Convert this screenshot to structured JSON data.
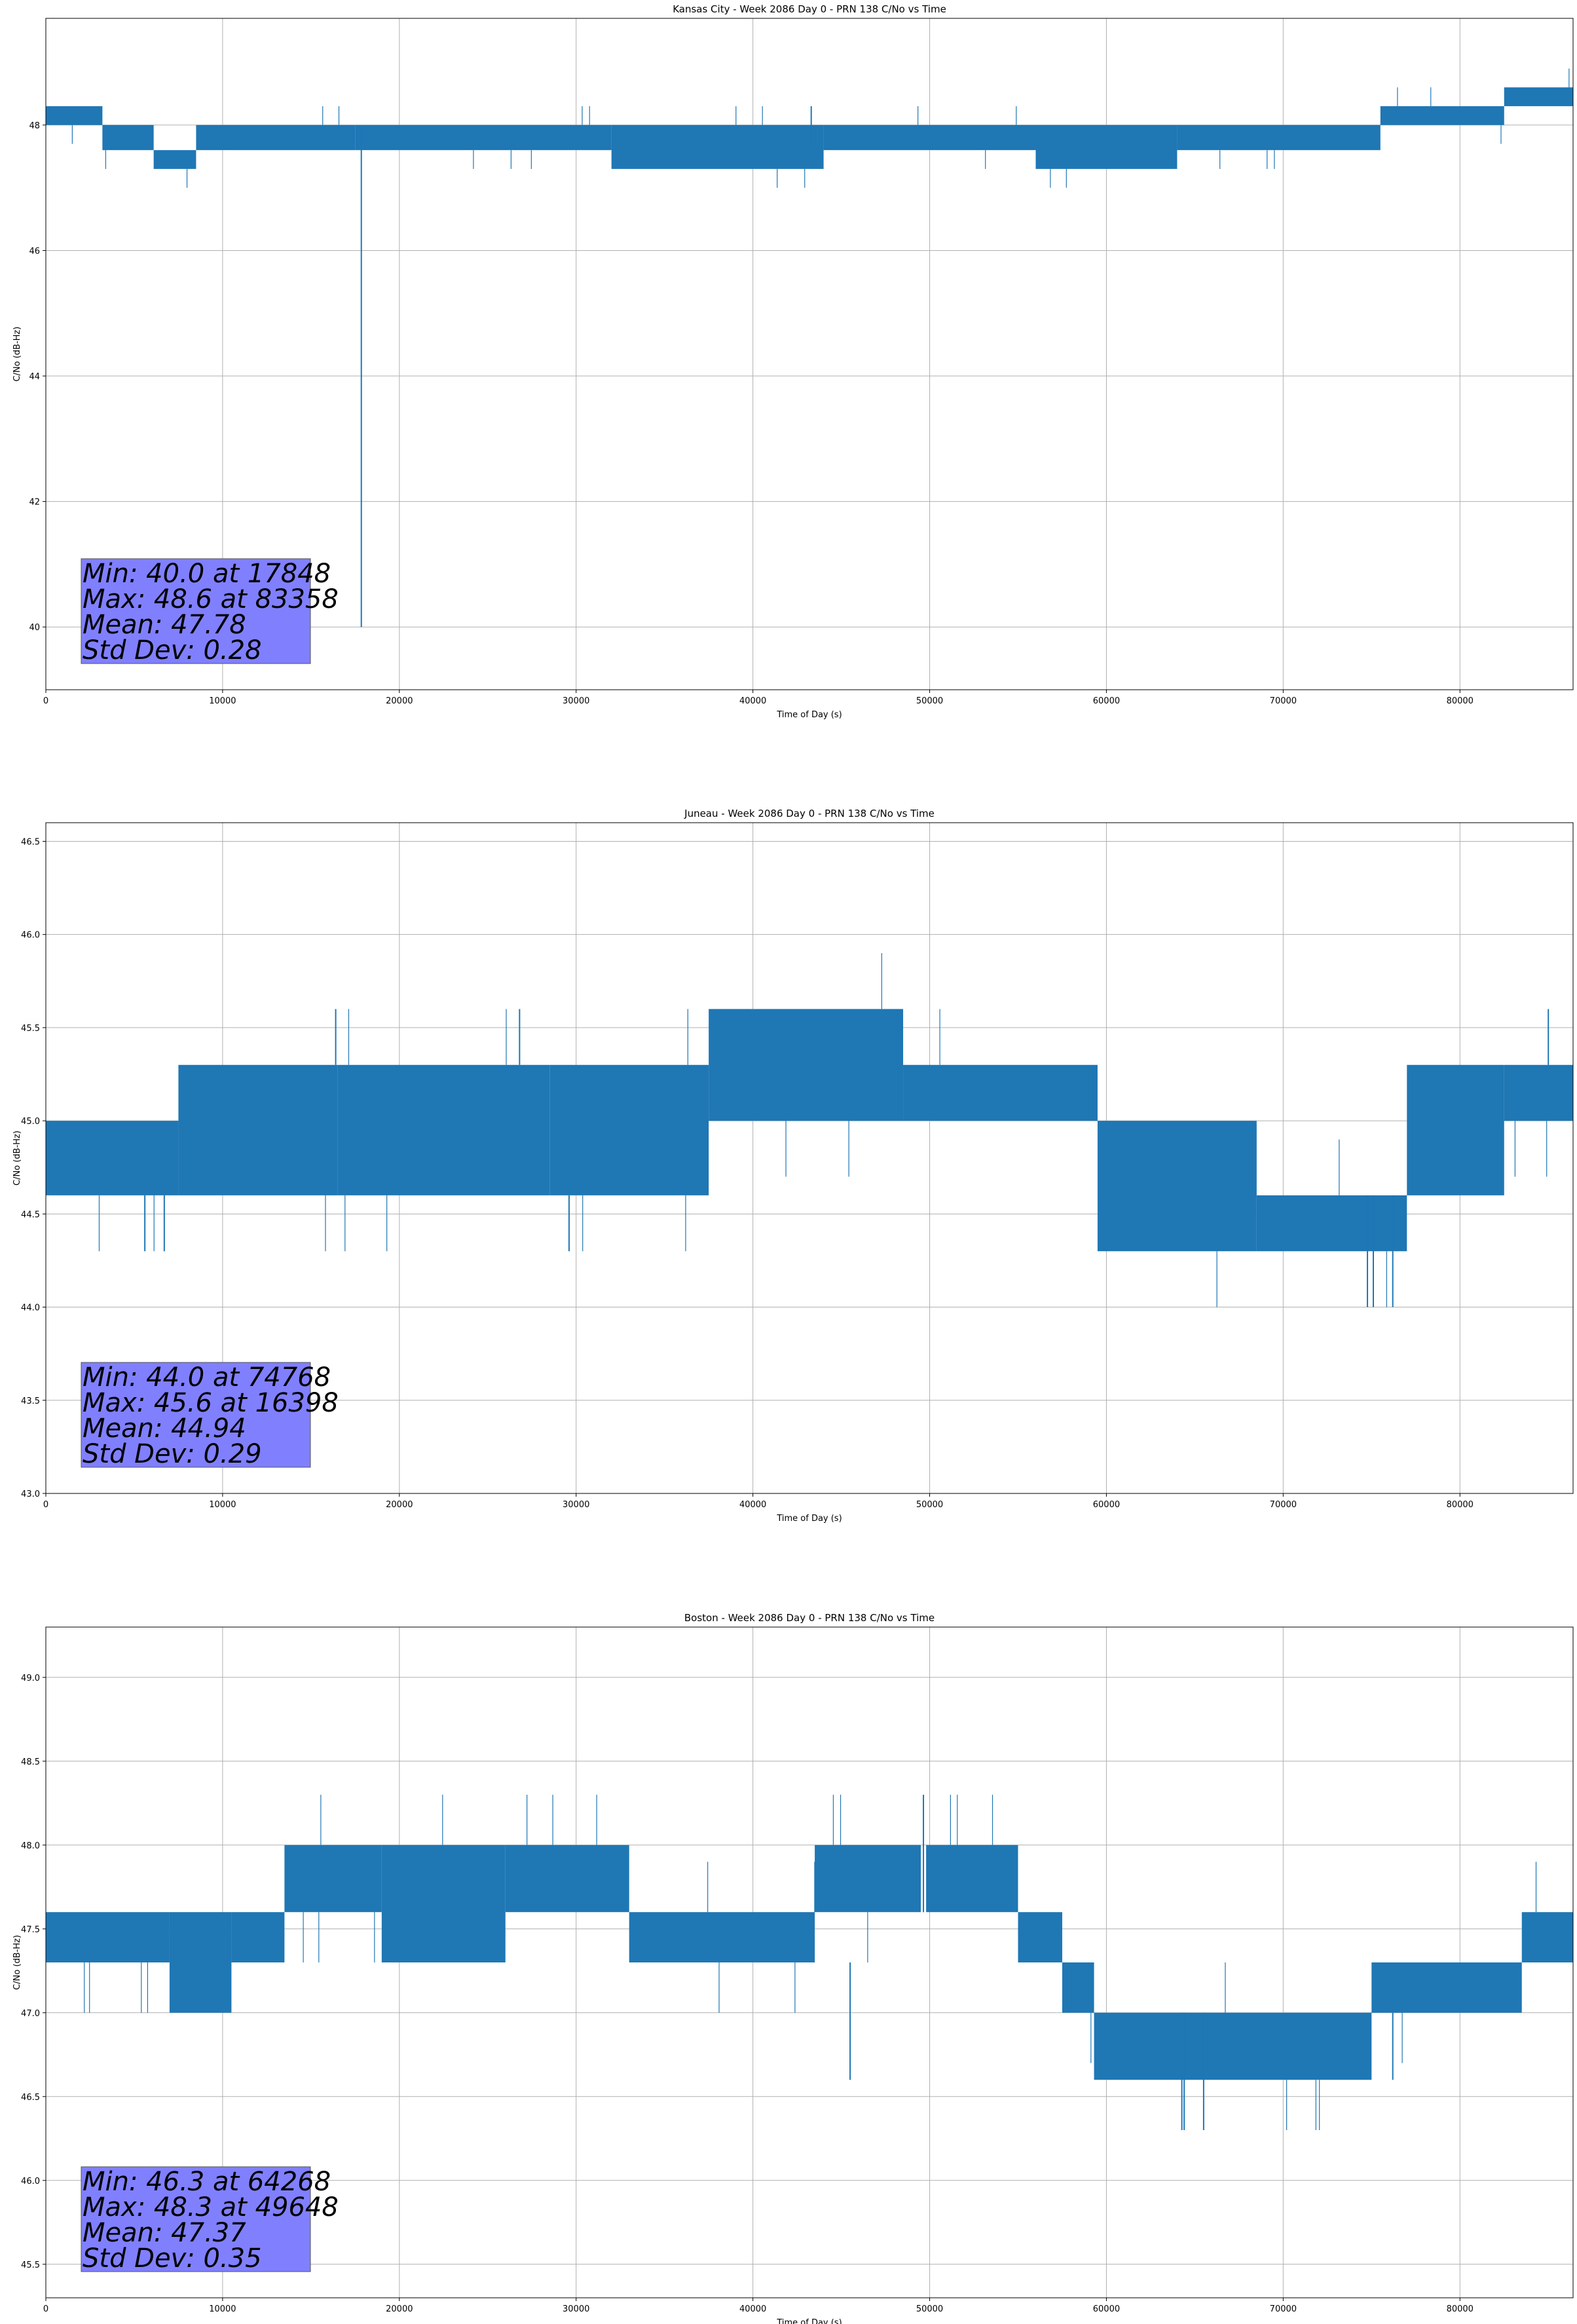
{
  "chart_data": [
    {
      "type": "line",
      "title": "Kansas City - Week 2086 Day 0 - PRN 138 C/No vs Time",
      "xlabel": "Time of Day (s)",
      "ylabel": "C/No (dB-Hz)",
      "xlim": [
        0,
        86400
      ],
      "ylim": [
        39.0,
        49.7
      ],
      "xticks": [
        0,
        10000,
        20000,
        30000,
        40000,
        50000,
        60000,
        70000,
        80000
      ],
      "yticks": [
        40,
        42,
        44,
        46,
        48
      ],
      "ytick_decimals": 0,
      "grid": true,
      "color": "#1f77b4",
      "series": [
        {
          "name": "C/No",
          "bands": [
            {
              "x": [
                0,
                3200
              ],
              "levels": [
                48.0,
                48.3
              ]
            },
            {
              "x": [
                3200,
                6100
              ],
              "levels": [
                47.6,
                48.0
              ]
            },
            {
              "x": [
                6100,
                8500
              ],
              "levels": [
                47.3,
                47.6
              ]
            },
            {
              "x": [
                8500,
                17500
              ],
              "levels": [
                47.6,
                48.0
              ]
            },
            {
              "x": [
                17500,
                32000
              ],
              "levels": [
                47.6,
                48.0
              ]
            },
            {
              "x": [
                32000,
                44000
              ],
              "levels": [
                47.3,
                48.0
              ]
            },
            {
              "x": [
                44000,
                56000
              ],
              "levels": [
                47.6,
                48.0
              ]
            },
            {
              "x": [
                56000,
                64000
              ],
              "levels": [
                47.3,
                48.0
              ]
            },
            {
              "x": [
                64000,
                75500
              ],
              "levels": [
                47.6,
                48.0
              ]
            },
            {
              "x": [
                75500,
                82500
              ],
              "levels": [
                48.0,
                48.3
              ]
            },
            {
              "x": [
                82500,
                86400
              ],
              "levels": [
                48.3,
                48.6
              ]
            }
          ],
          "spikes": [
            {
              "x": 17848,
              "low": 40.0,
              "high": 48.0
            },
            {
              "x": 3300,
              "low": 47.6,
              "high": 48.0
            },
            {
              "x": 43300,
              "low": 47.6,
              "high": 48.3
            }
          ]
        }
      ],
      "stats": {
        "min": "Min: 40.0 at 17848",
        "max": "Max: 48.6 at 83358",
        "mean": "Mean: 47.78",
        "std": "Std Dev: 0.28"
      }
    },
    {
      "type": "line",
      "title": "Juneau - Week 2086 Day 0 - PRN 138 C/No vs Time",
      "xlabel": "Time of Day (s)",
      "ylabel": "C/No (dB-Hz)",
      "xlim": [
        0,
        86400
      ],
      "ylim": [
        43.0,
        46.6
      ],
      "xticks": [
        0,
        10000,
        20000,
        30000,
        40000,
        50000,
        60000,
        70000,
        80000
      ],
      "yticks": [
        43.0,
        43.5,
        44.0,
        44.5,
        45.0,
        45.5,
        46.0,
        46.5
      ],
      "ytick_decimals": 1,
      "grid": true,
      "color": "#1f77b4",
      "series": [
        {
          "name": "C/No",
          "bands": [
            {
              "x": [
                0,
                7500
              ],
              "levels": [
                44.6,
                45.0
              ]
            },
            {
              "x": [
                7500,
                16500
              ],
              "levels": [
                44.6,
                45.3
              ]
            },
            {
              "x": [
                16500,
                28500
              ],
              "levels": [
                44.6,
                45.3
              ]
            },
            {
              "x": [
                28500,
                37500
              ],
              "levels": [
                44.6,
                45.3
              ]
            },
            {
              "x": [
                37500,
                48500
              ],
              "levels": [
                45.0,
                45.6
              ]
            },
            {
              "x": [
                48500,
                59500
              ],
              "levels": [
                45.0,
                45.3
              ]
            },
            {
              "x": [
                59500,
                68500
              ],
              "levels": [
                44.3,
                45.0
              ]
            },
            {
              "x": [
                68500,
                77000
              ],
              "levels": [
                44.3,
                44.6
              ]
            },
            {
              "x": [
                77000,
                82500
              ],
              "levels": [
                44.6,
                45.3
              ]
            },
            {
              "x": [
                82500,
                86400
              ],
              "levels": [
                45.0,
                45.3
              ]
            }
          ],
          "spikes": [
            {
              "x": 74768,
              "low": 44.0,
              "high": 44.6
            },
            {
              "x": 75100,
              "low": 44.0,
              "high": 44.6
            },
            {
              "x": 76200,
              "low": 44.0,
              "high": 44.6
            },
            {
              "x": 16398,
              "low": 45.3,
              "high": 45.6
            },
            {
              "x": 26800,
              "low": 45.3,
              "high": 45.6
            },
            {
              "x": 5600,
              "low": 44.3,
              "high": 44.6
            },
            {
              "x": 6700,
              "low": 44.3,
              "high": 44.6
            },
            {
              "x": 29600,
              "low": 44.3,
              "high": 44.6
            },
            {
              "x": 48200,
              "low": 45.3,
              "high": 45.6
            },
            {
              "x": 85000,
              "low": 45.3,
              "high": 45.6
            }
          ]
        }
      ],
      "stats": {
        "min": "Min: 44.0 at 74768",
        "max": "Max: 45.6 at 16398",
        "mean": "Mean: 44.94",
        "std": "Std Dev: 0.29"
      }
    },
    {
      "type": "line",
      "title": "Boston - Week 2086 Day 0 - PRN 138 C/No vs Time",
      "xlabel": "Time of Day (s)",
      "ylabel": "C/No (dB-Hz)",
      "xlim": [
        0,
        86400
      ],
      "ylim": [
        45.3,
        49.3
      ],
      "xticks": [
        0,
        10000,
        20000,
        30000,
        40000,
        50000,
        60000,
        70000,
        80000
      ],
      "yticks": [
        45.5,
        46.0,
        46.5,
        47.0,
        47.5,
        48.0,
        48.5,
        49.0
      ],
      "ytick_decimals": 1,
      "grid": true,
      "color": "#1f77b4",
      "series": [
        {
          "name": "C/No",
          "bands": [
            {
              "x": [
                0,
                7000
              ],
              "levels": [
                47.3,
                47.6
              ]
            },
            {
              "x": [
                7000,
                10500
              ],
              "levels": [
                47.0,
                47.6
              ]
            },
            {
              "x": [
                10500,
                13500
              ],
              "levels": [
                47.3,
                47.6
              ]
            },
            {
              "x": [
                13500,
                19000
              ],
              "levels": [
                47.6,
                48.0
              ]
            },
            {
              "x": [
                19000,
                26000
              ],
              "levels": [
                47.3,
                48.0
              ]
            },
            {
              "x": [
                26000,
                33000
              ],
              "levels": [
                47.6,
                48.0
              ]
            },
            {
              "x": [
                33000,
                43500
              ],
              "levels": [
                47.3,
                47.6
              ]
            },
            {
              "x": [
                43500,
                49500
              ],
              "levels": [
                47.6,
                48.0
              ]
            },
            {
              "x": [
                49800,
                55000
              ],
              "levels": [
                47.6,
                48.0
              ]
            },
            {
              "x": [
                55000,
                57500
              ],
              "levels": [
                47.3,
                47.6
              ]
            },
            {
              "x": [
                57500,
                59300
              ],
              "levels": [
                47.0,
                47.3
              ]
            },
            {
              "x": [
                59300,
                75000
              ],
              "levels": [
                46.6,
                47.0
              ]
            },
            {
              "x": [
                75000,
                83500
              ],
              "levels": [
                47.0,
                47.3
              ]
            },
            {
              "x": [
                83500,
                86400
              ],
              "levels": [
                47.3,
                47.6
              ]
            }
          ],
          "spikes": [
            {
              "x": 49648,
              "low": 47.6,
              "high": 48.3
            },
            {
              "x": 64268,
              "low": 46.3,
              "high": 47.0
            },
            {
              "x": 64400,
              "low": 46.3,
              "high": 47.0
            },
            {
              "x": 65500,
              "low": 46.3,
              "high": 47.0
            },
            {
              "x": 45500,
              "low": 46.6,
              "high": 47.3
            },
            {
              "x": 76200,
              "low": 46.6,
              "high": 47.0
            }
          ]
        }
      ],
      "stats": {
        "min": "Min: 46.3 at 64268",
        "max": "Max: 48.3 at 49648",
        "mean": "Mean: 47.37",
        "std": "Std Dev: 0.35"
      }
    }
  ]
}
